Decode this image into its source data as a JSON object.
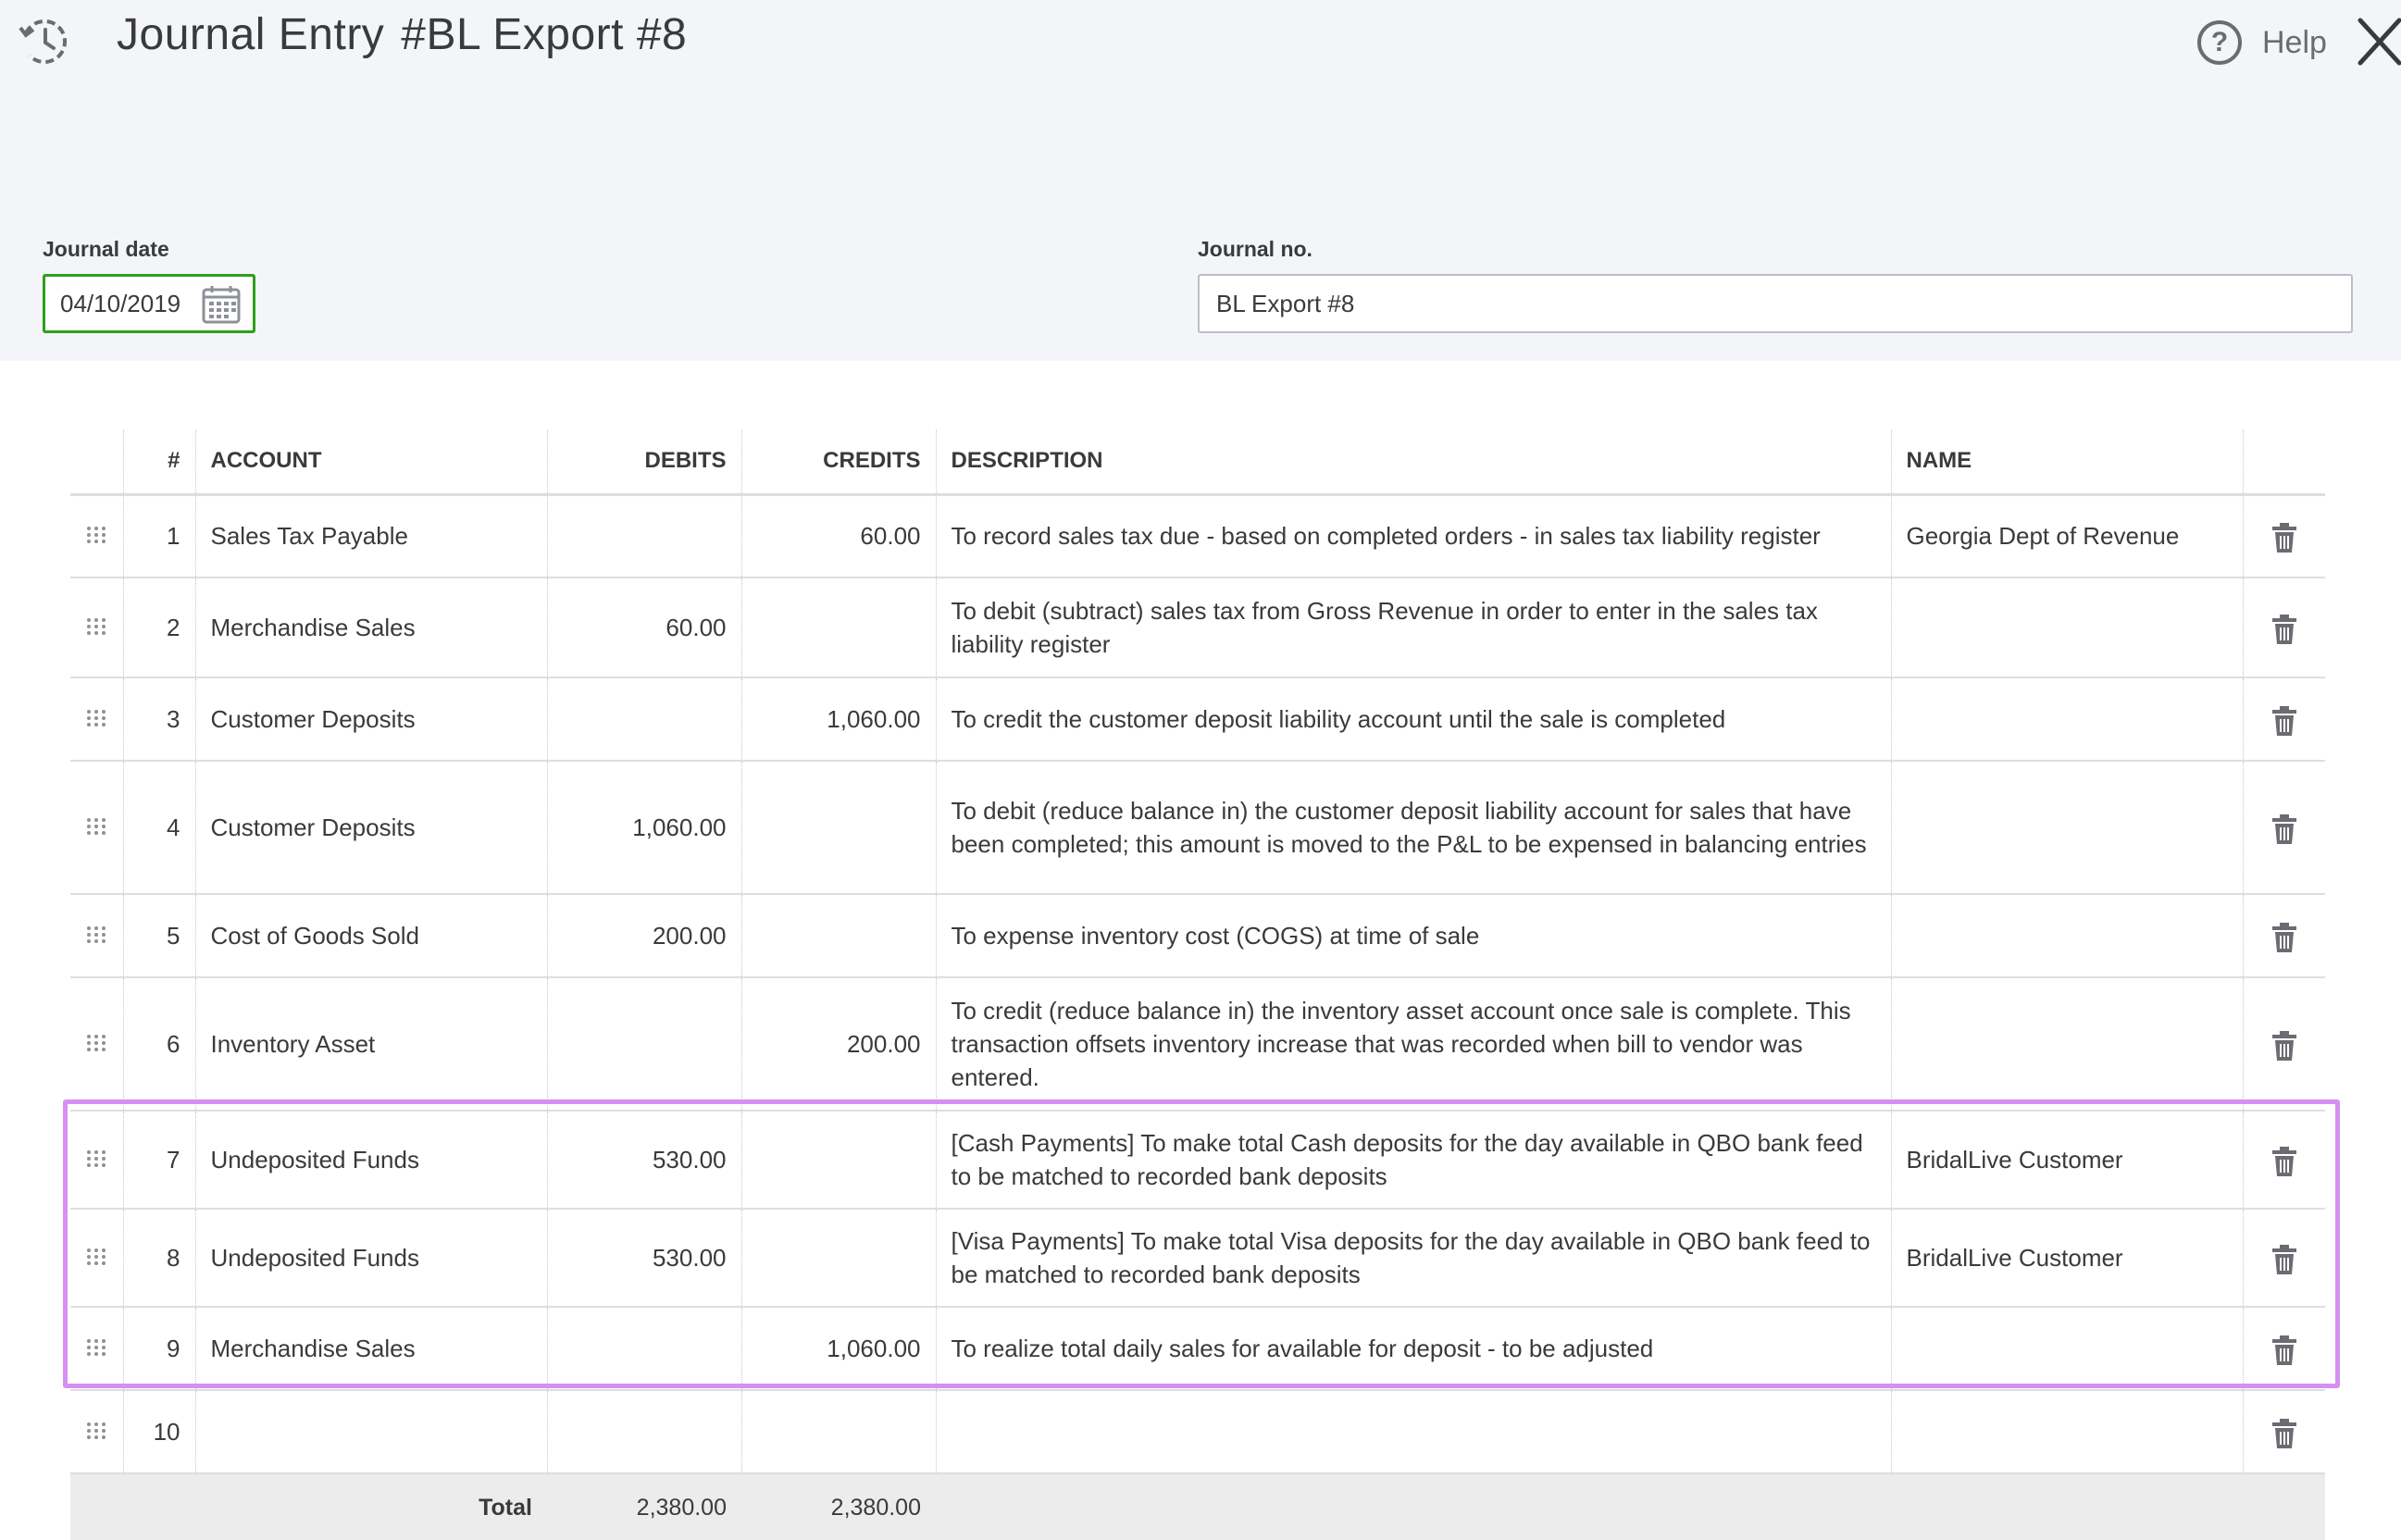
{
  "header": {
    "title": "Journal Entry",
    "number": "#BL Export #8",
    "help_label": "Help",
    "help_symbol": "?"
  },
  "form": {
    "date_label": "Journal date",
    "date_value": "04/10/2019",
    "journal_no_label": "Journal no.",
    "journal_no_value": "BL Export #8"
  },
  "table": {
    "columns": [
      "#",
      "ACCOUNT",
      "DEBITS",
      "CREDITS",
      "DESCRIPTION",
      "NAME"
    ],
    "rows": [
      {
        "num": "1",
        "account": "Sales Tax Payable",
        "debit": "",
        "credit": "60.00",
        "description": "To record sales tax due - based on completed orders - in sales tax liability register",
        "name": "Georgia Dept of Revenue"
      },
      {
        "num": "2",
        "account": "Merchandise Sales",
        "debit": "60.00",
        "credit": "",
        "description": "To debit (subtract) sales tax from Gross Revenue in order to enter in the sales tax liability register",
        "name": ""
      },
      {
        "num": "3",
        "account": "Customer Deposits",
        "debit": "",
        "credit": "1,060.00",
        "description": "To credit the customer deposit liability account until the sale is completed",
        "name": ""
      },
      {
        "num": "4",
        "account": "Customer Deposits",
        "debit": "1,060.00",
        "credit": "",
        "description": "To debit (reduce balance in) the customer deposit liability account for sales that have been completed; this amount is moved to the P&L to be expensed in balancing entries",
        "name": ""
      },
      {
        "num": "5",
        "account": "Cost of Goods Sold",
        "debit": "200.00",
        "credit": "",
        "description": "To expense inventory cost (COGS) at time of sale",
        "name": ""
      },
      {
        "num": "6",
        "account": "Inventory Asset",
        "debit": "",
        "credit": "200.00",
        "description": "To credit (reduce balance in) the inventory asset account once sale is complete. This transaction offsets inventory increase that was recorded when bill to vendor was entered.",
        "name": ""
      },
      {
        "num": "7",
        "account": "Undeposited Funds",
        "debit": "530.00",
        "credit": "",
        "description": "[Cash Payments] To make total Cash deposits for the day available in QBO bank feed to be matched to recorded bank deposits",
        "name": "BridalLive Customer"
      },
      {
        "num": "8",
        "account": "Undeposited Funds",
        "debit": "530.00",
        "credit": "",
        "description": "[Visa Payments] To make total Visa deposits for the day available in QBO bank feed to be matched to recorded bank deposits",
        "name": "BridalLive Customer"
      },
      {
        "num": "9",
        "account": "Merchandise Sales",
        "debit": "",
        "credit": "1,060.00",
        "description": "To realize total daily sales for available for deposit - to be adjusted",
        "name": ""
      },
      {
        "num": "10",
        "account": "",
        "debit": "",
        "credit": "",
        "description": "",
        "name": ""
      }
    ],
    "total_label": "Total",
    "total_debits": "2,380.00",
    "total_credits": "2,380.00"
  },
  "colors": {
    "accent_green": "#2ca01c",
    "highlight_purple": "#d78ff2",
    "header_bg": "#f4f5f8"
  }
}
